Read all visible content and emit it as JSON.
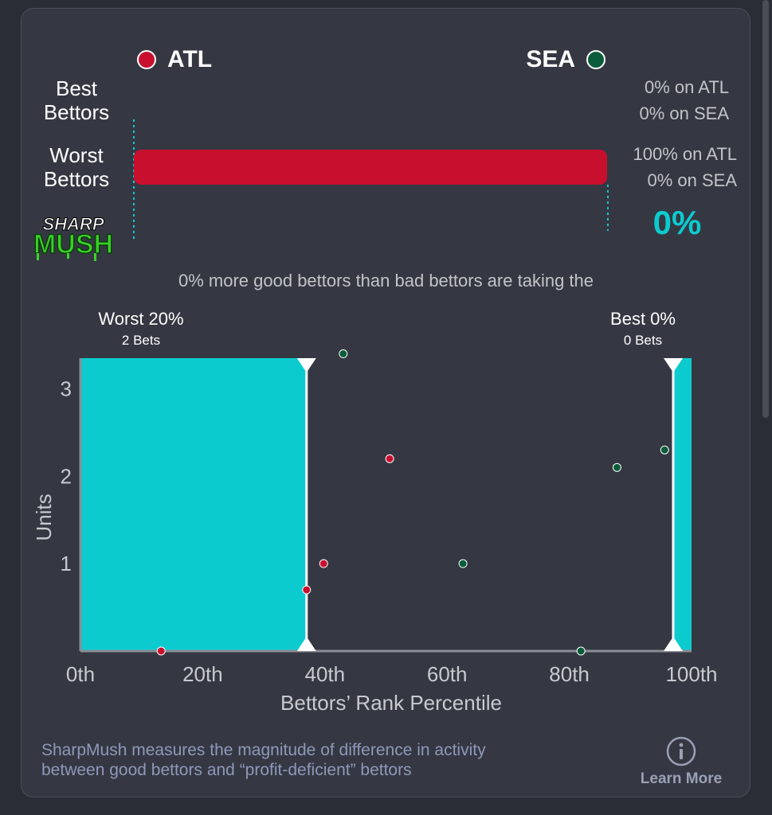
{
  "header": {
    "team_left": {
      "abbr": "ATL",
      "color": "#c8102e"
    },
    "team_right": {
      "abbr": "SEA",
      "color": "#0b5c3a"
    }
  },
  "rows": [
    {
      "label_line1": "Best",
      "label_line2": "Bettors",
      "pct_line1": "0% on ATL",
      "pct_line2": "0% on SEA",
      "atl_share": 0,
      "sea_share": 0
    },
    {
      "label_line1": "Worst",
      "label_line2": "Bettors",
      "pct_line1": "100% on ATL",
      "pct_line2": "0% on SEA",
      "atl_share": 100,
      "sea_share": 0
    }
  ],
  "logo": {
    "line1": "SHARP",
    "line2": "MUSH"
  },
  "score": "0%",
  "summary": "0% more good bettors than bad bettors are taking the",
  "colors": {
    "accent": "#0ccbcf",
    "atl": "#c8102e",
    "sea": "#0b5c3a",
    "card": "#353843"
  },
  "chart_data": {
    "type": "scatter",
    "xlabel": "Bettors’ Rank Percentile",
    "ylabel": "Units",
    "x_ticks": [
      "0th",
      "20th",
      "40th",
      "60th",
      "80th",
      "100th"
    ],
    "x_tick_values": [
      0,
      20,
      40,
      60,
      80,
      100
    ],
    "y_ticks": [
      "1",
      "2",
      "3"
    ],
    "y_tick_values": [
      1,
      2,
      3
    ],
    "xlim": [
      0,
      100
    ],
    "ylim": [
      0,
      3.35
    ],
    "worst_region": {
      "label": "Worst 20%",
      "bets": "2 Bets",
      "x_end": 37
    },
    "best_region": {
      "label": "Best 0%",
      "bets": "0 Bets",
      "x_start": 97
    },
    "series": [
      {
        "name": "ATL",
        "color": "#c8102e",
        "points": [
          [
            13.2,
            0
          ],
          [
            37.0,
            0.7
          ],
          [
            39.8,
            1.0
          ],
          [
            50.6,
            2.2
          ]
        ]
      },
      {
        "name": "SEA",
        "color": "#0b5c3a",
        "points": [
          [
            43.0,
            3.4
          ],
          [
            62.6,
            1.0
          ],
          [
            81.9,
            0
          ],
          [
            87.8,
            2.1
          ],
          [
            95.6,
            2.3
          ]
        ]
      }
    ]
  },
  "footer": {
    "description_line1": "SharpMush measures the magnitude of difference in activity",
    "description_line2": "between good bettors and “profit-deficient” bettors",
    "info_icon": "info-icon",
    "learn_more": "Learn More"
  }
}
